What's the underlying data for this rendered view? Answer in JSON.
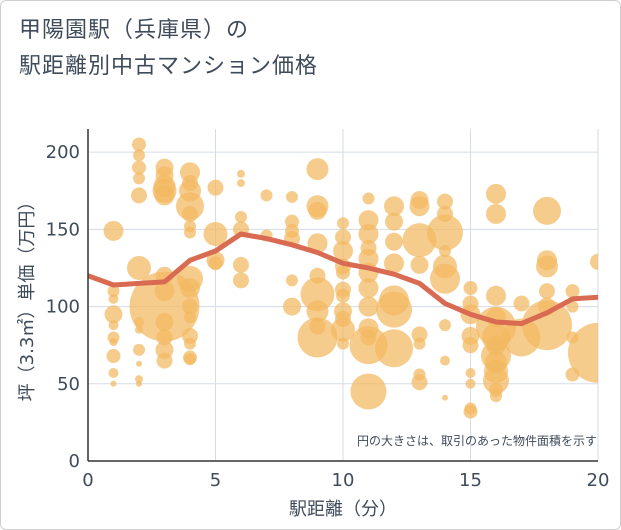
{
  "title_lines": [
    "甲陽園駅（兵庫県）の",
    "駅距離別中古マンション価格"
  ],
  "colors": {
    "bubble": "#f2b961",
    "line": "#d96b52",
    "grid": "#d5dce6",
    "axis": "#333333",
    "text": "#3f4b5a"
  },
  "chart_data": {
    "type": "scatter",
    "title": "甲陽園駅（兵庫県）の駅距離別中古マンション価格",
    "xlabel": "駅距離（分）",
    "ylabel": "坪（3.3㎡）単価（万円）",
    "xlim": [
      0,
      20
    ],
    "ylim": [
      0,
      215
    ],
    "xticks": [
      0,
      5,
      10,
      15,
      20
    ],
    "yticks": [
      0,
      50,
      100,
      150,
      200
    ],
    "grid": true,
    "annotation": "円の大きさは、取引のあった物件面積を示す",
    "series": [
      {
        "type": "bubble",
        "points": [
          [
            1,
            149,
            10
          ],
          [
            1,
            110,
            6
          ],
          [
            1,
            105,
            5
          ],
          [
            1,
            95,
            9
          ],
          [
            1,
            88,
            5
          ],
          [
            1,
            80,
            6
          ],
          [
            1,
            77,
            4
          ],
          [
            1,
            68,
            7
          ],
          [
            1,
            57,
            5
          ],
          [
            1,
            50,
            3
          ],
          [
            2,
            205,
            7
          ],
          [
            2,
            198,
            6
          ],
          [
            2,
            190,
            7
          ],
          [
            2,
            183,
            6
          ],
          [
            2,
            172,
            8
          ],
          [
            2,
            125,
            12
          ],
          [
            2,
            90,
            5
          ],
          [
            2,
            85,
            4
          ],
          [
            2,
            72,
            6
          ],
          [
            2,
            63,
            3
          ],
          [
            2,
            53,
            4
          ],
          [
            2,
            50,
            3
          ],
          [
            3,
            190,
            9
          ],
          [
            3,
            185,
            9
          ],
          [
            3,
            178,
            11
          ],
          [
            3,
            175,
            12
          ],
          [
            3,
            172,
            10
          ],
          [
            3,
            120,
            9
          ],
          [
            3,
            110,
            10
          ],
          [
            3,
            100,
            35
          ],
          [
            3,
            90,
            9
          ],
          [
            3,
            80,
            8
          ],
          [
            3,
            72,
            9
          ],
          [
            3,
            65,
            8
          ],
          [
            4,
            187,
            10
          ],
          [
            4,
            180,
            8
          ],
          [
            4,
            175,
            11
          ],
          [
            4,
            165,
            14
          ],
          [
            4,
            160,
            8
          ],
          [
            4,
            152,
            6
          ],
          [
            4,
            148,
            6
          ],
          [
            4,
            118,
            13
          ],
          [
            4,
            112,
            10
          ],
          [
            4,
            100,
            8
          ],
          [
            4,
            93,
            6
          ],
          [
            4,
            81,
            8
          ],
          [
            4,
            76,
            6
          ],
          [
            4,
            67,
            7
          ],
          [
            4,
            66,
            6
          ],
          [
            5,
            177,
            8
          ],
          [
            5,
            147,
            12
          ],
          [
            5,
            130,
            9
          ],
          [
            5,
            128,
            7
          ],
          [
            6,
            186,
            4
          ],
          [
            6,
            180,
            4
          ],
          [
            6,
            158,
            6
          ],
          [
            6,
            150,
            8
          ],
          [
            6,
            127,
            8
          ],
          [
            6,
            117,
            8
          ],
          [
            7,
            172,
            6
          ],
          [
            7,
            146,
            6
          ],
          [
            8,
            171,
            6
          ],
          [
            8,
            155,
            7
          ],
          [
            8,
            149,
            7
          ],
          [
            8,
            144,
            8
          ],
          [
            8,
            117,
            6
          ],
          [
            8,
            100,
            9
          ],
          [
            9,
            189,
            11
          ],
          [
            9,
            165,
            11
          ],
          [
            9,
            162,
            9
          ],
          [
            9,
            141,
            10
          ],
          [
            9,
            120,
            8
          ],
          [
            9,
            108,
            17
          ],
          [
            9,
            97,
            11
          ],
          [
            9,
            87,
            8
          ],
          [
            9,
            80,
            20
          ],
          [
            10,
            154,
            6
          ],
          [
            10,
            145,
            8
          ],
          [
            10,
            136,
            10
          ],
          [
            10,
            126,
            8
          ],
          [
            10,
            122,
            7
          ],
          [
            10,
            111,
            8
          ],
          [
            10,
            107,
            7
          ],
          [
            10,
            97,
            9
          ],
          [
            10,
            92,
            8
          ],
          [
            10,
            85,
            12
          ],
          [
            10,
            76,
            6
          ],
          [
            11,
            170,
            6
          ],
          [
            11,
            156,
            10
          ],
          [
            11,
            147,
            10
          ],
          [
            11,
            138,
            8
          ],
          [
            11,
            131,
            10
          ],
          [
            11,
            122,
            10
          ],
          [
            11,
            112,
            10
          ],
          [
            11,
            100,
            10
          ],
          [
            11,
            86,
            10
          ],
          [
            11,
            80,
            8
          ],
          [
            11,
            75,
            19
          ],
          [
            11,
            45,
            18
          ],
          [
            12,
            165,
            10
          ],
          [
            12,
            155,
            9
          ],
          [
            12,
            142,
            9
          ],
          [
            12,
            128,
            10
          ],
          [
            12,
            104,
            15
          ],
          [
            12,
            98,
            18
          ],
          [
            12,
            73,
            19
          ],
          [
            13,
            169,
            9
          ],
          [
            13,
            165,
            10
          ],
          [
            13,
            143,
            17
          ],
          [
            13,
            127,
            9
          ],
          [
            13,
            82,
            8
          ],
          [
            13,
            76,
            6
          ],
          [
            13,
            56,
            6
          ],
          [
            13,
            51,
            8
          ],
          [
            14,
            168,
            8
          ],
          [
            14,
            160,
            8
          ],
          [
            14,
            148,
            18
          ],
          [
            14,
            136,
            6
          ],
          [
            14,
            126,
            12
          ],
          [
            14,
            118,
            15
          ],
          [
            14,
            88,
            6
          ],
          [
            14,
            65,
            5
          ],
          [
            14,
            41,
            3
          ],
          [
            15,
            112,
            7
          ],
          [
            15,
            102,
            8
          ],
          [
            15,
            95,
            10
          ],
          [
            15,
            81,
            9
          ],
          [
            15,
            75,
            8
          ],
          [
            15,
            57,
            5
          ],
          [
            15,
            50,
            5
          ],
          [
            15,
            34,
            6
          ],
          [
            15,
            32,
            7
          ],
          [
            16,
            173,
            10
          ],
          [
            16,
            160,
            10
          ],
          [
            16,
            107,
            10
          ],
          [
            16,
            93,
            10
          ],
          [
            16,
            87,
            20
          ],
          [
            16,
            80,
            14
          ],
          [
            16,
            75,
            10
          ],
          [
            16,
            68,
            15
          ],
          [
            16,
            64,
            11
          ],
          [
            16,
            58,
            12
          ],
          [
            16,
            52,
            13
          ],
          [
            16,
            46,
            7
          ],
          [
            16,
            42,
            6
          ],
          [
            17,
            102,
            8
          ],
          [
            17,
            80,
            19
          ],
          [
            18,
            162,
            14
          ],
          [
            18,
            130,
            10
          ],
          [
            18,
            126,
            11
          ],
          [
            18,
            110,
            8
          ],
          [
            18,
            100,
            9
          ],
          [
            18,
            88,
            25
          ],
          [
            19,
            110,
            7
          ],
          [
            19,
            100,
            6
          ],
          [
            19,
            80,
            6
          ],
          [
            19,
            56,
            7
          ],
          [
            20,
            129,
            8
          ],
          [
            20,
            70,
            30
          ]
        ]
      },
      {
        "type": "line",
        "x": [
          0,
          1,
          2,
          3,
          4,
          5,
          6,
          7,
          8,
          9,
          10,
          11,
          12,
          13,
          14,
          15,
          16,
          17,
          18,
          19,
          20
        ],
        "y": [
          120,
          114,
          115,
          116,
          130,
          136,
          147,
          144,
          140,
          135,
          128,
          125,
          121,
          115,
          102,
          95,
          90,
          89,
          96,
          105,
          106
        ]
      }
    ]
  }
}
